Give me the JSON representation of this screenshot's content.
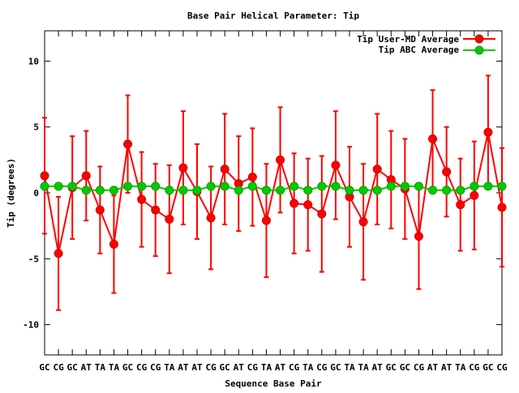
{
  "chart_data": {
    "type": "line",
    "title": "Base Pair Helical Parameter: Tip",
    "xlabel": "Sequence Base Pair",
    "ylabel": "Tip (degrees)",
    "ylim": [
      -12.3,
      12.3
    ],
    "yticks": [
      10,
      5,
      0,
      -5,
      -10
    ],
    "grid": false,
    "legend_position": "top-right",
    "categories": [
      "GC",
      "CG",
      "GC",
      "AT",
      "TA",
      "TA",
      "GC",
      "CG",
      "CG",
      "TA",
      "AT",
      "AT",
      "CG",
      "GC",
      "AT",
      "CG",
      "TA",
      "AT",
      "CG",
      "TA",
      "CG",
      "GC",
      "TA",
      "TA",
      "AT",
      "GC",
      "GC",
      "CG",
      "AT",
      "AT",
      "TA",
      "CG",
      "GC",
      "CG"
    ],
    "series": [
      {
        "name": "Tip User-MD Average",
        "color": "#ff0000",
        "edge_color": "#cc0000",
        "values": [
          1.3,
          -4.6,
          0.4,
          1.3,
          -1.3,
          -3.9,
          3.7,
          -0.5,
          -1.3,
          -2.0,
          1.9,
          0.1,
          -1.9,
          1.8,
          0.7,
          1.2,
          -2.1,
          2.5,
          -0.8,
          -0.9,
          -1.6,
          2.1,
          -0.3,
          -2.2,
          1.8,
          1.0,
          0.3,
          -3.3,
          4.1,
          1.6,
          -0.9,
          -0.2,
          4.6,
          -1.1
        ],
        "errors": [
          4.4,
          4.3,
          3.9,
          3.4,
          3.3,
          3.7,
          3.7,
          3.6,
          3.5,
          4.1,
          4.3,
          3.6,
          3.9,
          4.2,
          3.6,
          3.7,
          4.3,
          4.0,
          3.8,
          3.5,
          4.4,
          4.1,
          3.8,
          4.4,
          4.2,
          3.7,
          3.8,
          4.0,
          3.7,
          3.4,
          3.5,
          4.1,
          4.3,
          4.5
        ]
      },
      {
        "name": "Tip ABC Average",
        "color": "#00cc00",
        "edge_color": "#00a000",
        "values": [
          0.5,
          0.5,
          0.5,
          0.2,
          0.2,
          0.2,
          0.5,
          0.5,
          0.5,
          0.2,
          0.2,
          0.2,
          0.5,
          0.5,
          0.2,
          0.5,
          0.2,
          0.2,
          0.5,
          0.2,
          0.5,
          0.5,
          0.2,
          0.2,
          0.2,
          0.5,
          0.5,
          0.5,
          0.2,
          0.2,
          0.2,
          0.5,
          0.5,
          0.5
        ]
      }
    ]
  }
}
